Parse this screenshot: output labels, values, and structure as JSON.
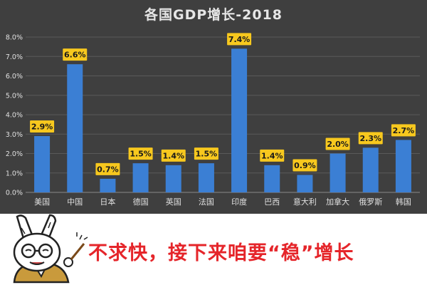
{
  "colors": {
    "background": "#3f3f3f",
    "bar": "#3b7fd4",
    "label_bg": "#f7c81e",
    "label_text": "#1a1a1a",
    "axis_text": "#e0e0e0",
    "grid": "#5a5a5a",
    "caption": "#e5252a"
  },
  "chart_data": {
    "type": "bar",
    "title": "各国GDP增长-2018",
    "categories": [
      "美国",
      "中国",
      "日本",
      "德国",
      "英国",
      "法国",
      "印度",
      "巴西",
      "意大利",
      "加拿大",
      "俄罗斯",
      "韩国"
    ],
    "values": [
      2.9,
      6.6,
      0.7,
      1.5,
      1.4,
      1.5,
      7.4,
      1.4,
      0.9,
      2.0,
      2.3,
      2.7
    ],
    "data_labels": [
      "2.9%",
      "6.6%",
      "0.7%",
      "1.5%",
      "1.4%",
      "1.5%",
      "7.4%",
      "1.4%",
      "0.9%",
      "2.0%",
      "2.3%",
      "2.7%"
    ],
    "y_ticks": [
      0,
      1,
      2,
      3,
      4,
      5,
      6,
      7,
      8
    ],
    "y_tick_labels": [
      "0.0%",
      "1.0%",
      "2.0%",
      "3.0%",
      "4.0%",
      "5.0%",
      "6.0%",
      "7.0%",
      "8.0%"
    ],
    "ylim": [
      0,
      8
    ],
    "xlabel": "",
    "ylabel": "",
    "grid": true,
    "legend": "none"
  },
  "caption": {
    "text": "不求快，接下来咱要“稳”增长",
    "mascot_icon": "cartoon-rabbit-teacher"
  }
}
